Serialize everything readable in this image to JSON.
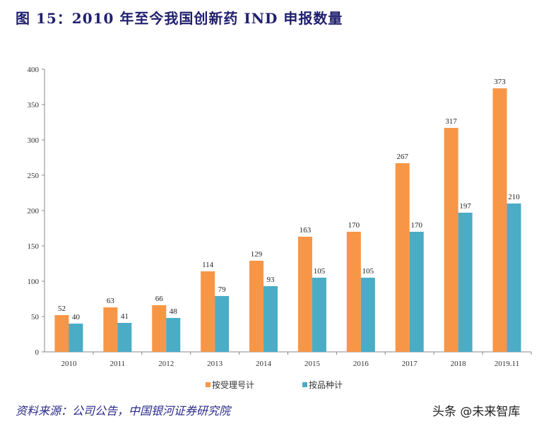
{
  "title": "图 15：2010 年至今我国创新药 IND 申报数量",
  "source": "资料来源：公司公告，中国银河证券研究院",
  "watermark": "头条 @未来智库",
  "chart_data": {
    "type": "bar",
    "title": "",
    "xlabel": "",
    "ylabel": "",
    "categories": [
      "2010",
      "2011",
      "2012",
      "2013",
      "2014",
      "2015",
      "2016",
      "2017",
      "2018",
      "2019.11"
    ],
    "series": [
      {
        "name": "按受理号计",
        "color": "#f79646",
        "values": [
          52,
          63,
          66,
          114,
          129,
          163,
          170,
          267,
          317,
          373
        ]
      },
      {
        "name": "按品种计",
        "color": "#4bacc6",
        "values": [
          40,
          41,
          48,
          79,
          93,
          105,
          105,
          170,
          197,
          210
        ]
      }
    ],
    "ylim": [
      0,
      400
    ],
    "yticks": [
      0,
      50,
      100,
      150,
      200,
      250,
      300,
      350,
      400
    ],
    "grid": false,
    "legend_position": "bottom",
    "data_labels": true
  }
}
